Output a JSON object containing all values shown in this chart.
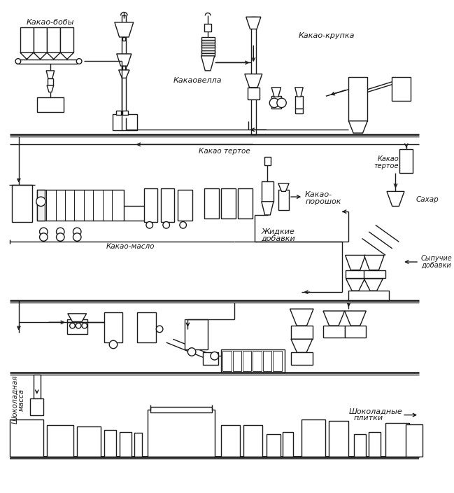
{
  "background_color": "#ffffff",
  "line_color": "#1a1a1a",
  "text_color": "#1a1a1a",
  "labels": {
    "kakao_boby": "Какао-бобы",
    "kakaovella": "Какаовелла",
    "kakao_krupka": "Какао-крупка",
    "kakao_tertoe_top": "Какао тертое",
    "kakao_tertoe_right1": "Какао",
    "kakao_tertoe_right2": "тертое",
    "kakao_maslo": "Какао-масло",
    "zhidkie_dobavki1": "Жидкие",
    "zhidkie_dobavki2": "добавки",
    "kakao_poroshok1": "Какао-",
    "kakao_poroshok2": "порошок",
    "sakhar": "Сахар",
    "sypuchie_dobavki1": "Сыпучие",
    "sypuchie_dobavki2": "добавки",
    "shokoladnaya_massa1": "Шоколадная",
    "shokoladnaya_massa2": "масса",
    "shokoladnye_plitki1": "Шоколадные",
    "shokoladnye_plitki2": "плитки"
  },
  "figsize": [
    6.49,
    7.04
  ],
  "dpi": 100
}
